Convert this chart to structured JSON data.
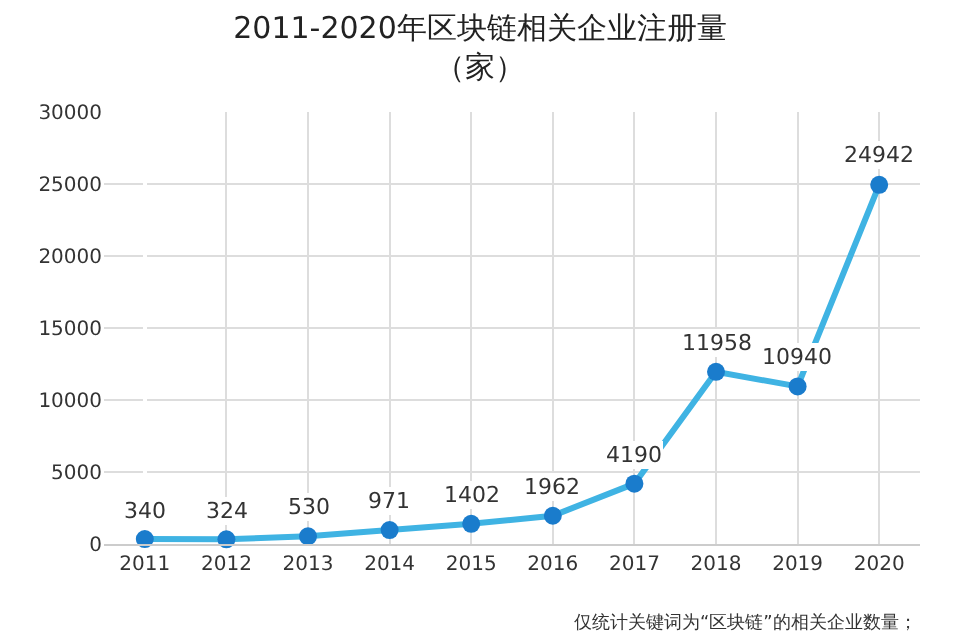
{
  "chart_data": {
    "type": "line",
    "title": "2011-2020年区块链相关企业注册量",
    "subtitle": "（家）",
    "categories": [
      "2011",
      "2012",
      "2013",
      "2014",
      "2015",
      "2016",
      "2017",
      "2018",
      "2019",
      "2020"
    ],
    "series": [
      {
        "color": "#3fb3e3",
        "values": [
          340,
          324,
          530,
          971,
          1402,
          1962,
          4190,
          11958,
          10940,
          24942
        ]
      }
    ],
    "ylim": [
      0,
      30000
    ],
    "yticks": [
      0,
      5000,
      10000,
      15000,
      20000,
      25000,
      30000
    ],
    "grid": true,
    "marker": "circle",
    "data_labels": true,
    "legend": false,
    "annotations": [
      "仅统计关键词为“区块链”的相关企业数量；"
    ]
  }
}
